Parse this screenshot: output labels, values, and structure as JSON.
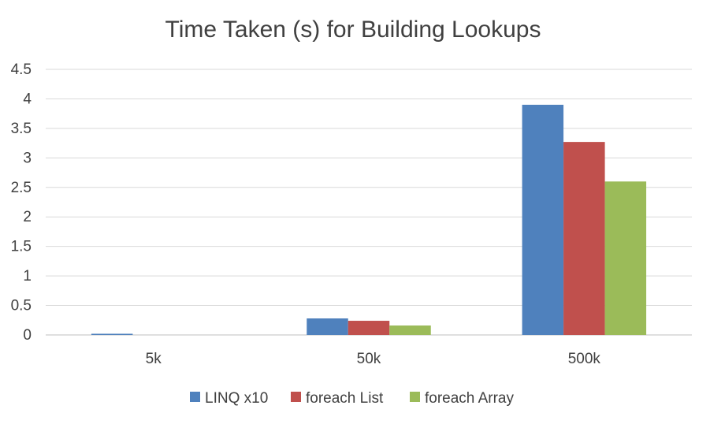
{
  "chart_data": {
    "type": "bar",
    "title": "Time Taken (s) for Building Lookups",
    "xlabel": "",
    "ylabel": "",
    "categories": [
      "5k",
      "50k",
      "500k"
    ],
    "series": [
      {
        "name": "LINQ x10",
        "color": "#4f81bd",
        "values": [
          0.02,
          0.28,
          3.9
        ]
      },
      {
        "name": "foreach List",
        "color": "#c0504d",
        "values": [
          0.0,
          0.24,
          3.27
        ]
      },
      {
        "name": "foreach Array",
        "color": "#9bbb59",
        "values": [
          0.0,
          0.16,
          2.6
        ]
      }
    ],
    "ylim": [
      0,
      4.5
    ],
    "yticks": [
      "0",
      "0.5",
      "1",
      "1.5",
      "2",
      "2.5",
      "3",
      "3.5",
      "4",
      "4.5"
    ],
    "grid": true,
    "legend_position": "bottom"
  }
}
